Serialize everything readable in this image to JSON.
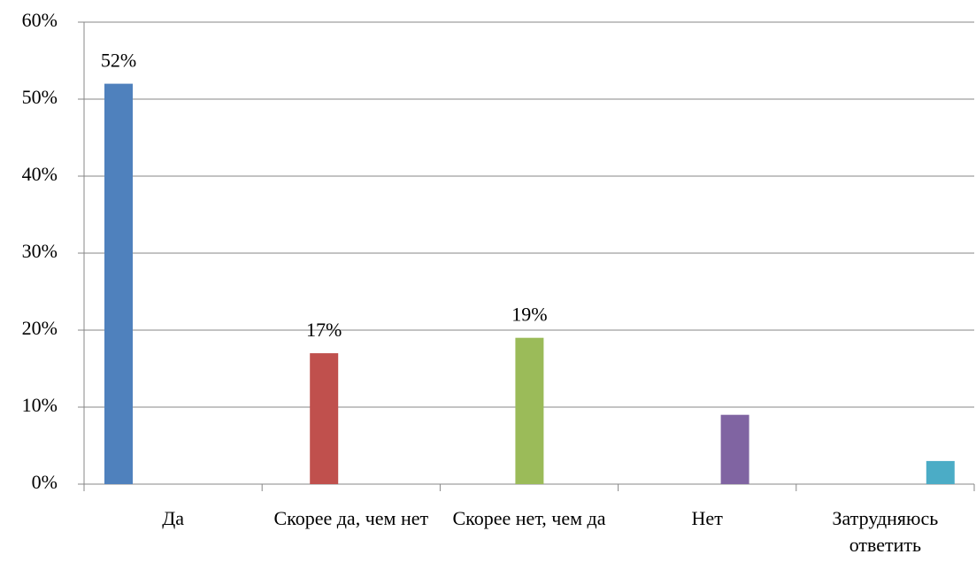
{
  "chart_data": {
    "type": "bar",
    "categories": [
      "Да",
      "Скорее да, чем нет",
      "Скорее нет, чем да",
      "Нет",
      "Затрудняюсь ответить"
    ],
    "values": [
      52,
      17,
      19,
      9,
      3
    ],
    "value_labels": [
      "52%",
      "17%",
      "19%",
      null,
      null
    ],
    "colors": [
      "#4f81bd",
      "#c0504d",
      "#9bbb59",
      "#8064a2",
      "#4bacc6"
    ],
    "ylim": [
      0,
      60
    ],
    "yticks": [
      {
        "value": 0,
        "label": "0%"
      },
      {
        "value": 10,
        "label": "10%"
      },
      {
        "value": 20,
        "label": "20%"
      },
      {
        "value": 30,
        "label": "30%"
      },
      {
        "value": 40,
        "label": "40%"
      },
      {
        "value": 50,
        "label": "50%"
      },
      {
        "value": 60,
        "label": "60%"
      }
    ],
    "grid": true
  }
}
